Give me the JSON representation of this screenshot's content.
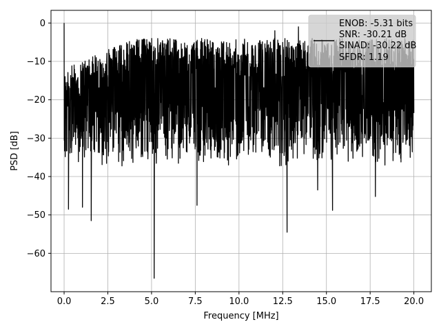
{
  "chart_data": {
    "type": "line",
    "title": "",
    "xlabel": "Frequency [MHz]",
    "ylabel": "PSD [dB]",
    "xlim": [
      -0.75,
      21.0
    ],
    "ylim": [
      -70.0,
      3.3
    ],
    "xticks": [
      0.0,
      2.5,
      5.0,
      7.5,
      10.0,
      12.5,
      15.0,
      17.5,
      20.0
    ],
    "xtick_labels": [
      "0.0",
      "2.5",
      "5.0",
      "7.5",
      "10.0",
      "12.5",
      "15.0",
      "17.5",
      "20.0"
    ],
    "yticks": [
      0,
      -10,
      -20,
      -30,
      -40,
      -50,
      -60
    ],
    "ytick_labels": [
      "0",
      "−10",
      "−20",
      "−30",
      "−40",
      "−50",
      "−60"
    ],
    "grid": true,
    "legend_position": "top-right",
    "legend_entries": [
      "ENOB: -5.31 bits",
      "SNR: -30.21 dB",
      "SINAD: -30.22 dB",
      "SFDR: 1.19"
    ],
    "series_color": "#000000",
    "x_range": [
      0.0,
      20.0
    ],
    "approx_ceiling_db": -4,
    "noise_floor_db": [
      -15,
      -30
    ],
    "notable_points": [
      {
        "x": 0.0,
        "y": 0.0
      },
      {
        "x": 0.25,
        "y": -48.5
      },
      {
        "x": 1.05,
        "y": -48
      },
      {
        "x": 1.55,
        "y": -51.5
      },
      {
        "x": 5.15,
        "y": -66.5
      },
      {
        "x": 7.6,
        "y": -47.5
      },
      {
        "x": 12.75,
        "y": -54.5
      },
      {
        "x": 15.35,
        "y": -48.8
      },
      {
        "x": 14.5,
        "y": -43.5
      },
      {
        "x": 17.8,
        "y": -45.2
      },
      {
        "x": 12.05,
        "y": -2.0
      },
      {
        "x": 13.4,
        "y": -1.0
      }
    ]
  }
}
